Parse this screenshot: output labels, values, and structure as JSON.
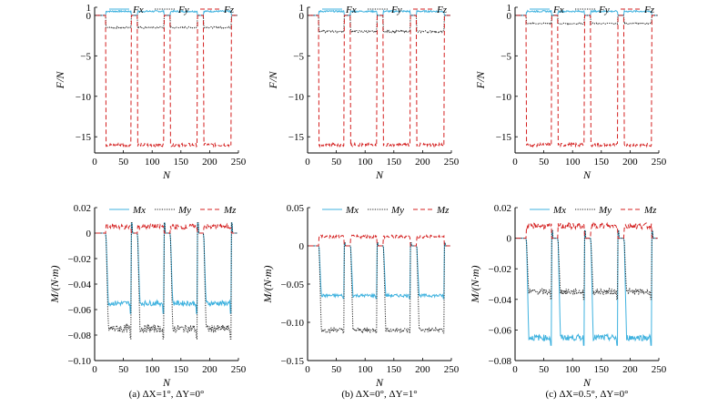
{
  "colors": {
    "Fx": "#3fb2df",
    "Fy": "#222222",
    "Fz": "#d42020",
    "Mx": "#3fb2df",
    "My": "#222222",
    "Mz": "#d42020"
  },
  "captions": [
    "(a) ΔX=1°, ΔY=0°",
    "(b) ΔX=0°, ΔY=1°",
    "(c) ΔX=0.5°, ΔY=0°"
  ],
  "chart_data": [
    {
      "id": "a-force",
      "type": "line",
      "xlabel": "N",
      "ylabel": "F/N",
      "xlim": [
        0,
        250
      ],
      "ylim": [
        -17,
        1
      ],
      "xticks": [
        0,
        50,
        100,
        150,
        200,
        250
      ],
      "yticks": [
        1,
        0,
        -5,
        -10,
        -15
      ],
      "legend": "top",
      "grid": false,
      "segments": [
        [
          20,
          63
        ],
        [
          75,
          120
        ],
        [
          132,
          178
        ],
        [
          190,
          237
        ]
      ],
      "series": [
        {
          "name": "Fx",
          "key": "Fx",
          "dash": "solid",
          "base": 0,
          "level": 0.5,
          "noise": 0.1
        },
        {
          "name": "Fy",
          "key": "Fy",
          "dash": "dotted",
          "base": 0,
          "level": -1.5,
          "noise": 0.1
        },
        {
          "name": "Fz",
          "key": "Fz",
          "dash": "dashed",
          "base": 0,
          "level": -16,
          "noise": 0.2
        }
      ]
    },
    {
      "id": "b-force",
      "type": "line",
      "xlabel": "N",
      "ylabel": "F/N",
      "xlim": [
        0,
        250
      ],
      "ylim": [
        -17,
        1
      ],
      "xticks": [
        0,
        50,
        100,
        150,
        200,
        250
      ],
      "yticks": [
        1,
        0,
        -5,
        -10,
        -15
      ],
      "legend": "top",
      "grid": false,
      "segments": [
        [
          20,
          63
        ],
        [
          75,
          120
        ],
        [
          132,
          178
        ],
        [
          190,
          237
        ]
      ],
      "series": [
        {
          "name": "Fx",
          "key": "Fx",
          "dash": "solid",
          "base": 0,
          "level": 0.5,
          "noise": 0.1
        },
        {
          "name": "Fy",
          "key": "Fy",
          "dash": "dotted",
          "base": 0,
          "level": -2.0,
          "noise": 0.12
        },
        {
          "name": "Fz",
          "key": "Fz",
          "dash": "dashed",
          "base": 0,
          "level": -16,
          "noise": 0.2
        }
      ]
    },
    {
      "id": "c-force",
      "type": "line",
      "xlabel": "N",
      "ylabel": "F/N",
      "xlim": [
        0,
        250
      ],
      "ylim": [
        -17,
        1
      ],
      "xticks": [
        0,
        50,
        100,
        150,
        200,
        250
      ],
      "yticks": [
        1,
        0,
        -5,
        -10,
        -15
      ],
      "legend": "top",
      "grid": false,
      "segments": [
        [
          20,
          63
        ],
        [
          75,
          120
        ],
        [
          132,
          178
        ],
        [
          190,
          237
        ]
      ],
      "series": [
        {
          "name": "Fx",
          "key": "Fx",
          "dash": "solid",
          "base": 0,
          "level": 0.5,
          "noise": 0.1
        },
        {
          "name": "Fy",
          "key": "Fy",
          "dash": "dotted",
          "base": 0,
          "level": -1.0,
          "noise": 0.08
        },
        {
          "name": "Fz",
          "key": "Fz",
          "dash": "dashed",
          "base": 0,
          "level": -16,
          "noise": 0.2
        }
      ]
    },
    {
      "id": "a-moment",
      "type": "line",
      "xlabel": "N",
      "ylabel": "M/(N·m)",
      "xlim": [
        0,
        250
      ],
      "ylim": [
        -0.1,
        0.02
      ],
      "xticks": [
        0,
        50,
        100,
        150,
        200,
        250
      ],
      "yticks": [
        0.02,
        0,
        -0.02,
        -0.04,
        -0.06,
        -0.08,
        -0.1
      ],
      "ytick_labels": [
        "0.02",
        "0",
        "−0.02",
        "−0.04",
        "−0.06",
        "−0.08",
        "−0.10"
      ],
      "legend": "top",
      "grid": false,
      "segments": [
        [
          20,
          63
        ],
        [
          75,
          120
        ],
        [
          132,
          178
        ],
        [
          190,
          237
        ]
      ],
      "series": [
        {
          "name": "Mx",
          "key": "Mx",
          "dash": "solid",
          "base": 0,
          "level": -0.055,
          "noise": 0.002,
          "spike": 0.008
        },
        {
          "name": "My",
          "key": "My",
          "dash": "dotted",
          "base": 0,
          "level": -0.075,
          "noise": 0.003,
          "spike": 0.008
        },
        {
          "name": "Mz",
          "key": "Mz",
          "dash": "dashed",
          "base": 0,
          "level": 0.005,
          "noise": 0.002
        }
      ]
    },
    {
      "id": "b-moment",
      "type": "line",
      "xlabel": "N",
      "ylabel": "M/(N·m)",
      "xlim": [
        0,
        250
      ],
      "ylim": [
        -0.15,
        0.05
      ],
      "xticks": [
        0,
        50,
        100,
        150,
        200,
        250
      ],
      "yticks": [
        0.05,
        0,
        -0.05,
        -0.1,
        -0.15
      ],
      "ytick_labels": [
        "0.05",
        "0",
        "−0.05",
        "−0.10",
        "−0.15"
      ],
      "legend": "top",
      "grid": false,
      "segments": [
        [
          20,
          63
        ],
        [
          75,
          120
        ],
        [
          132,
          178
        ],
        [
          190,
          237
        ]
      ],
      "series": [
        {
          "name": "Mx",
          "key": "Mx",
          "dash": "solid",
          "base": 0,
          "level": -0.065,
          "noise": 0.002,
          "spike": 0.004
        },
        {
          "name": "My",
          "key": "My",
          "dash": "dotted",
          "base": 0,
          "level": -0.11,
          "noise": 0.003,
          "spike": 0.004
        },
        {
          "name": "Mz",
          "key": "Mz",
          "dash": "dashed",
          "base": 0,
          "level": 0.012,
          "noise": 0.002
        }
      ]
    },
    {
      "id": "c-moment",
      "type": "line",
      "xlabel": "N",
      "ylabel": "M/(N·m)",
      "xlim": [
        0,
        250
      ],
      "ylim": [
        -0.08,
        0.02
      ],
      "xticks": [
        0,
        50,
        100,
        150,
        200,
        250
      ],
      "yticks": [
        0.02,
        0,
        -0.02,
        -0.04,
        -0.06,
        -0.08
      ],
      "ytick_labels": [
        "0.02",
        "0",
        "−0.02",
        "−0.04",
        "−0.06",
        "−0.08"
      ],
      "legend": "top",
      "grid": false,
      "segments": [
        [
          20,
          63
        ],
        [
          75,
          120
        ],
        [
          132,
          178
        ],
        [
          190,
          237
        ]
      ],
      "series": [
        {
          "name": "Mx",
          "key": "Mx",
          "dash": "solid",
          "base": 0,
          "level": -0.065,
          "noise": 0.002,
          "spike": 0.005
        },
        {
          "name": "My",
          "key": "My",
          "dash": "dotted",
          "base": 0,
          "level": -0.035,
          "noise": 0.002,
          "spike": 0.005
        },
        {
          "name": "Mz",
          "key": "Mz",
          "dash": "dashed",
          "base": 0,
          "level": 0.008,
          "noise": 0.002
        }
      ]
    }
  ]
}
